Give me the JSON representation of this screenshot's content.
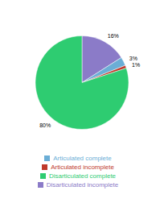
{
  "chart_data": {
    "type": "pie",
    "categories": [
      "Disarticulated incomplete",
      "Articulated complete",
      "Articulated incomplete",
      "Disarticulated complete"
    ],
    "values": [
      16,
      3,
      1,
      80
    ],
    "value_labels": [
      "16%",
      "3%",
      "1%",
      "80%"
    ],
    "colors": [
      "#8B7BC8",
      "#6baed6",
      "#c0392b",
      "#2ecc71"
    ],
    "data_labels": true,
    "legend": "bottom"
  }
}
